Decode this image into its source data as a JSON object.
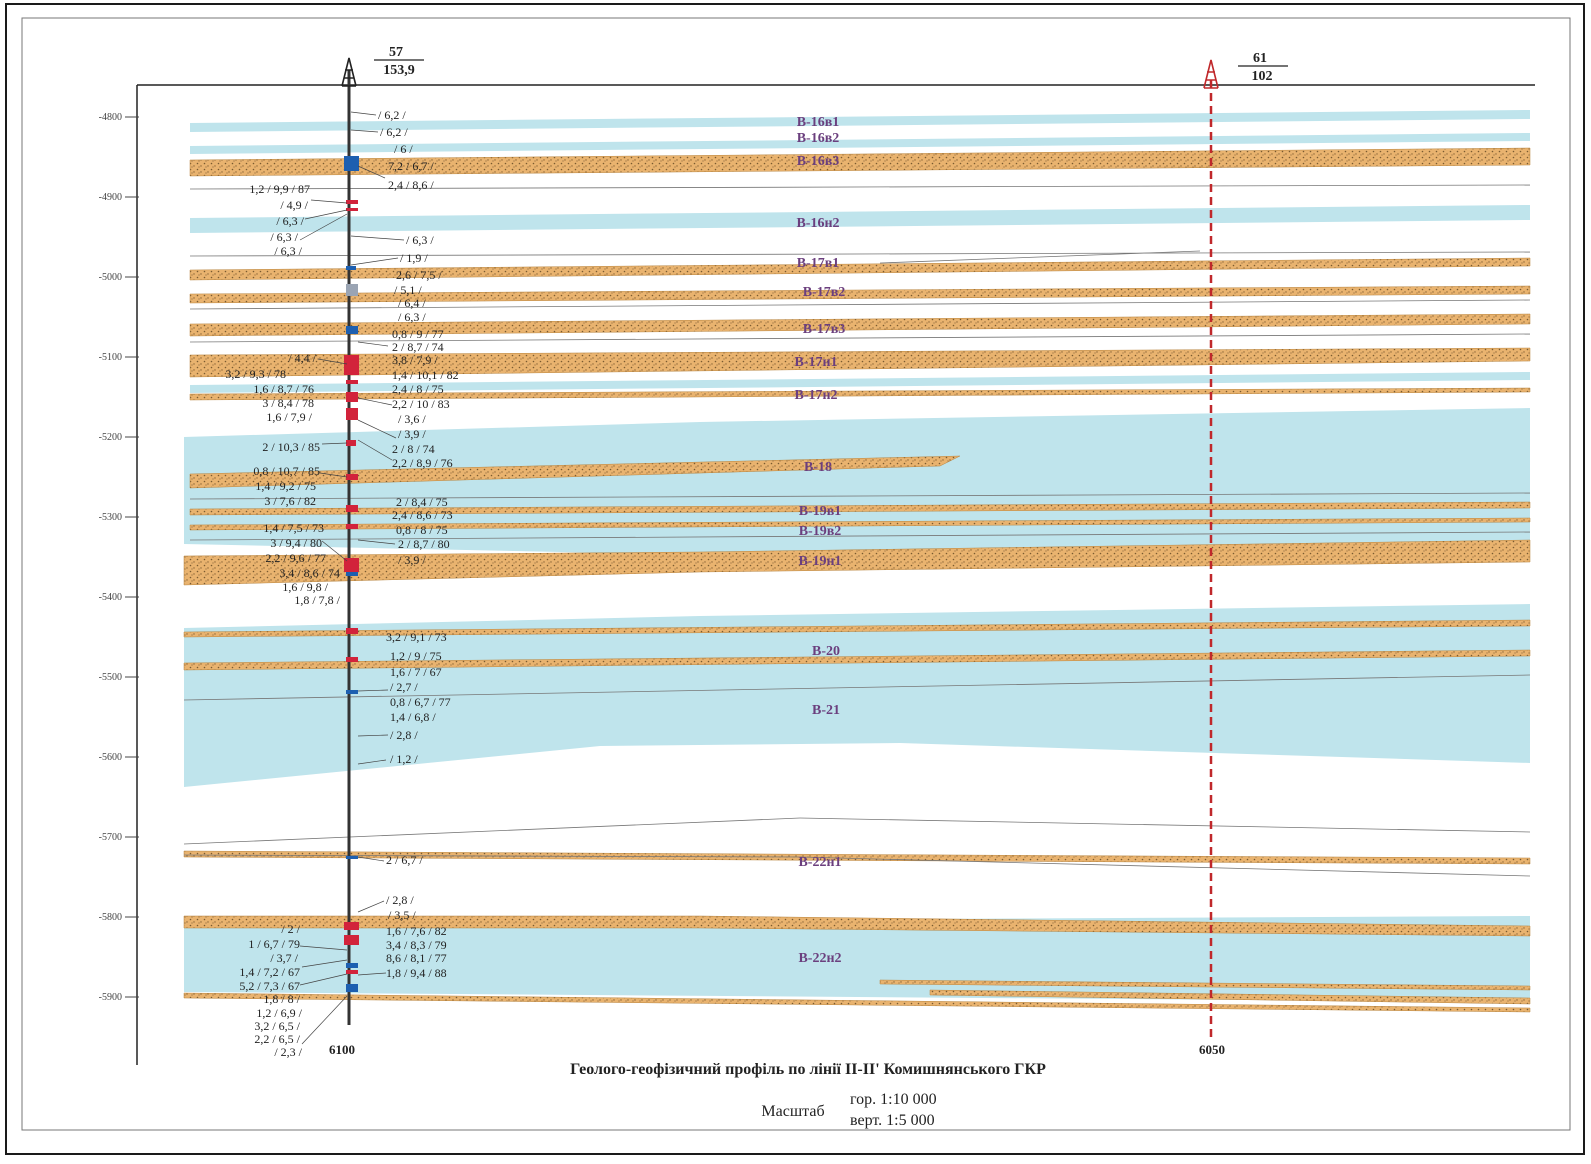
{
  "wells": [
    {
      "id": "well-57",
      "number": "57",
      "altitude": "153,9",
      "bottom_label": "6100"
    },
    {
      "id": "well-61",
      "number": "61",
      "altitude": "102",
      "bottom_label": "6050"
    }
  ],
  "depth_ticks": [
    "-4800",
    "-4900",
    "-5000",
    "-5100",
    "-5200",
    "-5300",
    "-5400",
    "-5500",
    "-5600",
    "-5700",
    "-5800",
    "-5900"
  ],
  "horizons": [
    "В-16в1",
    "В-16в2",
    "В-16в3",
    "В-16н2",
    "В-17в1",
    "В-17в2",
    "В-17в3",
    "В-17н1",
    "В-17н2",
    "В-18",
    "В-19в1",
    "В-19в2",
    "В-19н1",
    "В-20",
    "В-21",
    "В-22н1",
    "В-22н2"
  ],
  "annotations_right": [
    "/ 6,2 /",
    "/ 6,2 /",
    "/ 6 /",
    "7,2 / 6,7 /",
    "2,4 / 8,6 /",
    "/ 6,3 /",
    "/ 1,9 /",
    "2,6 / 7,5 /",
    "/ 5,1 /",
    "/ 6,4 /",
    "/ 6,3 /",
    "0,8 / 9 / 77",
    "2 / 8,7 / 74",
    "3,8 / 7,9 /",
    "1,4 / 10,1 / 82",
    "2,4 / 8 / 75",
    "2,2 / 10 / 83",
    "/ 3,6 /",
    "/ 3,9 /",
    "2 / 8 / 74",
    "2,2 / 8,9 / 76",
    "2 / 8,4 / 75",
    "2,4 / 8,6 / 73",
    "0,8 / 8 / 75",
    "2 / 8,7 / 80",
    "/ 3,9 /",
    "3,2 / 9,1 / 73",
    "1,2 / 9 / 75",
    "1,6 / 7 / 67",
    "/ 2,7 /",
    "0,8 / 6,7 / 77",
    "1,4 / 6,8 /",
    "/ 2,8 /",
    "/ 1,2 /",
    "2 / 6,7 /",
    "/ 2,8 /",
    "/ 3,5 /",
    "1,6 / 7,6 / 82",
    "3,4 / 8,3 / 79",
    "8,6 / 8,1 / 77",
    "1,8 / 9,4 / 88"
  ],
  "annotations_left": [
    "1,2 / 9,9 / 87",
    "/ 4,9 /",
    "/ 6,3 /",
    "/ 6,3 /",
    "/ 6,3 /",
    "/ 4,4 /",
    "3,2 / 9,3 / 78",
    "1,6 / 8,7 / 76",
    "3 / 8,4 / 78",
    "1,6 / 7,9 /",
    "2 / 10,3 / 85",
    "0,8 / 10,7 / 85",
    "1,4 / 9,2 / 75",
    "3 / 7,6 / 82",
    "1,4 / 7,5 / 73",
    "3 / 9,4 / 80",
    "2,2 / 9,6 / 77",
    "3,4 / 8,6 / 74",
    "1,6 / 9,8 /",
    "1,8 / 7,8 /",
    "/ 2 /",
    "1 / 6,7 / 79",
    "/ 3,7 /",
    "1,4 / 7,2 / 67",
    "5,2 / 7,3 / 67",
    "1,8 / 8 /",
    "1,2 / 6,9 /",
    "3,2 / 6,5 /",
    "2,2 / 6,5 /",
    "/ 2,3 /"
  ],
  "footer": {
    "title": "Геолого-геофізичний профіль по лінії II-II' Комишнянського ГКР",
    "scale_word": "Масштаб",
    "scale_horizontal": "гор. 1:10 000",
    "scale_vertical": "верт. 1:5 000"
  },
  "colors": {
    "clay": "#bfe4ec",
    "sand": "#e9b36f",
    "sand_dots": "#7a5a30",
    "well_57": "#333333",
    "well_61": "#c0282b",
    "label": "#6b3f7e",
    "perf_red": "#d2233b",
    "perf_blue": "#1d5fb0"
  }
}
